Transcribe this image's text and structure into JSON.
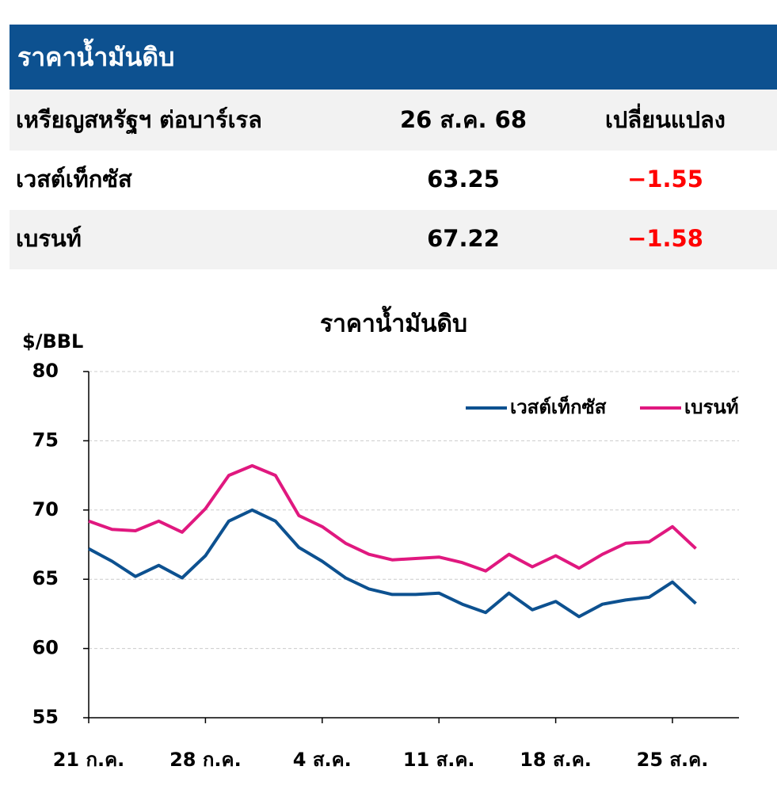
{
  "header": {
    "title": "ราคาน้ำมันดิบ"
  },
  "table": {
    "header": [
      "เหรียญสหรัฐฯ ต่อบาร์เรล",
      "26 ส.ค. 68",
      "เปลี่ยนแปลง"
    ],
    "rows": [
      [
        "เวสต์เท็กซัส",
        "63.25",
        "−1.55"
      ],
      [
        "เบรนท์",
        "67.22",
        "−1.58"
      ]
    ]
  },
  "chart_data": {
    "type": "line",
    "title": "ราคาน้ำมันดิบ",
    "y_label": "$/BBL",
    "categories": [
      "21 ก.ค.",
      null,
      null,
      null,
      null,
      "28 ก.ค.",
      null,
      null,
      null,
      null,
      "4 ส.ค.",
      null,
      null,
      null,
      null,
      "11 ส.ค.",
      null,
      null,
      null,
      null,
      "18 ส.ค.",
      null,
      null,
      null,
      null,
      "25 ส.ค.",
      null
    ],
    "series": [
      {
        "name": "เวสต์เท็กซัส",
        "color": "#0d5190",
        "values": [
          67.2,
          66.3,
          65.2,
          66.0,
          65.1,
          66.7,
          69.2,
          70.0,
          69.2,
          67.3,
          66.3,
          65.1,
          64.3,
          63.9,
          63.9,
          64.0,
          63.2,
          62.6,
          64.0,
          62.8,
          63.4,
          62.3,
          63.2,
          63.5,
          63.7,
          64.8,
          63.25
        ]
      },
      {
        "name": "เบรนท์",
        "color": "#e0187f",
        "values": [
          69.2,
          68.6,
          68.5,
          69.2,
          68.4,
          70.1,
          72.5,
          73.2,
          72.5,
          69.6,
          68.8,
          67.6,
          66.8,
          66.4,
          66.5,
          66.6,
          66.2,
          65.6,
          66.8,
          65.9,
          66.7,
          65.8,
          66.8,
          67.6,
          67.7,
          68.8,
          67.22
        ]
      }
    ],
    "ylim": [
      55,
      80
    ],
    "yticks": [
      55,
      60,
      65,
      70,
      75,
      80
    ],
    "grid": true,
    "legend": "upper right"
  }
}
